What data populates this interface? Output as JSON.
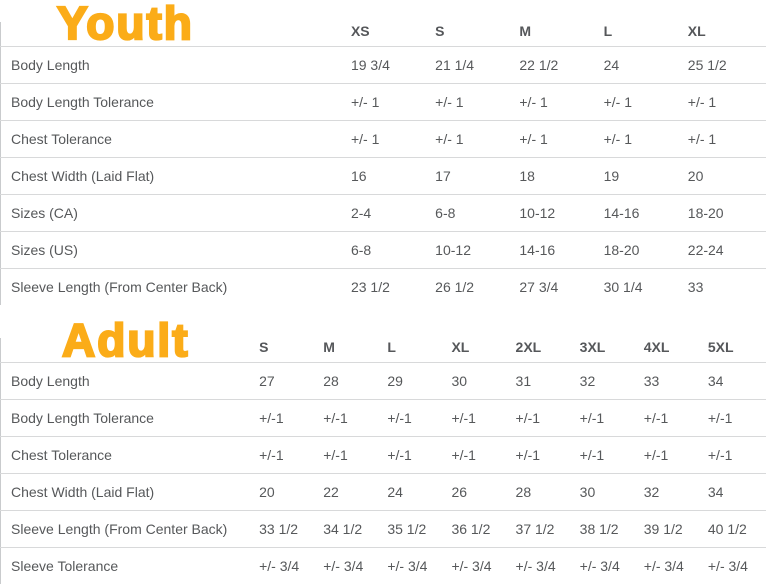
{
  "accent_color": "#fbac18",
  "text_color": "#56585a",
  "line_color": "#d8d9da",
  "sections": [
    {
      "title": "Youth",
      "columns": [
        "XS",
        "S",
        "M",
        "L",
        "XL"
      ],
      "rows": [
        {
          "label": "Body Length",
          "values": [
            "19 3/4",
            "21 1/4",
            "22 1/2",
            "24",
            "25 1/2"
          ]
        },
        {
          "label": "Body Length Tolerance",
          "values": [
            "+/- 1",
            "+/- 1",
            "+/- 1",
            "+/- 1",
            "+/- 1"
          ]
        },
        {
          "label": "Chest Tolerance",
          "values": [
            "+/- 1",
            "+/- 1",
            "+/- 1",
            "+/- 1",
            "+/- 1"
          ]
        },
        {
          "label": "Chest Width (Laid Flat)",
          "values": [
            "16",
            "17",
            "18",
            "19",
            "20"
          ]
        },
        {
          "label": "Sizes (CA)",
          "values": [
            "2-4",
            "6-8",
            "10-12",
            "14-16",
            "18-20"
          ]
        },
        {
          "label": "Sizes (US)",
          "values": [
            "6-8",
            "10-12",
            "14-16",
            "18-20",
            "22-24"
          ]
        },
        {
          "label": "Sleeve Length (From Center Back)",
          "values": [
            "23 1/2",
            "26 1/2",
            "27 3/4",
            "30 1/4",
            "33"
          ]
        }
      ]
    },
    {
      "title": "Adult",
      "columns": [
        "S",
        "M",
        "L",
        "XL",
        "2XL",
        "3XL",
        "4XL",
        "5XL"
      ],
      "rows": [
        {
          "label": "Body Length",
          "values": [
            "27",
            "28",
            "29",
            "30",
            "31",
            "32",
            "33",
            "34"
          ]
        },
        {
          "label": "Body Length Tolerance",
          "values": [
            "+/-1",
            "+/-1",
            "+/-1",
            "+/-1",
            "+/-1",
            "+/-1",
            "+/-1",
            "+/-1"
          ]
        },
        {
          "label": "Chest Tolerance",
          "values": [
            "+/-1",
            "+/-1",
            "+/-1",
            "+/-1",
            "+/-1",
            "+/-1",
            "+/-1",
            "+/-1"
          ]
        },
        {
          "label": "Chest Width (Laid Flat)",
          "values": [
            "20",
            "22",
            "24",
            "26",
            "28",
            "30",
            "32",
            "34"
          ]
        },
        {
          "label": "Sleeve Length (From Center Back)",
          "values": [
            "33 1/2",
            "34 1/2",
            "35 1/2",
            "36 1/2",
            "37 1/2",
            "38 1/2",
            "39 1/2",
            "40 1/2"
          ]
        },
        {
          "label": "Sleeve Tolerance",
          "values": [
            "+/- 3/4",
            "+/- 3/4",
            "+/- 3/4",
            "+/- 3/4",
            "+/- 3/4",
            "+/- 3/4",
            "+/- 3/4",
            "+/- 3/4"
          ]
        }
      ]
    }
  ],
  "chart_data": [
    {
      "type": "table",
      "title": "Youth",
      "columns": [
        "",
        "XS",
        "S",
        "M",
        "L",
        "XL"
      ],
      "rows": [
        [
          "Body Length",
          "19 3/4",
          "21 1/4",
          "22 1/2",
          "24",
          "25 1/2"
        ],
        [
          "Body Length Tolerance",
          "+/- 1",
          "+/- 1",
          "+/- 1",
          "+/- 1",
          "+/- 1"
        ],
        [
          "Chest Tolerance",
          "+/- 1",
          "+/- 1",
          "+/- 1",
          "+/- 1",
          "+/- 1"
        ],
        [
          "Chest Width (Laid Flat)",
          "16",
          "17",
          "18",
          "19",
          "20"
        ],
        [
          "Sizes (CA)",
          "2-4",
          "6-8",
          "10-12",
          "14-16",
          "18-20"
        ],
        [
          "Sizes (US)",
          "6-8",
          "10-12",
          "14-16",
          "18-20",
          "22-24"
        ],
        [
          "Sleeve Length (From Center Back)",
          "23 1/2",
          "26 1/2",
          "27 3/4",
          "30 1/4",
          "33"
        ]
      ]
    },
    {
      "type": "table",
      "title": "Adult",
      "columns": [
        "",
        "S",
        "M",
        "L",
        "XL",
        "2XL",
        "3XL",
        "4XL",
        "5XL"
      ],
      "rows": [
        [
          "Body Length",
          "27",
          "28",
          "29",
          "30",
          "31",
          "32",
          "33",
          "34"
        ],
        [
          "Body Length Tolerance",
          "+/-1",
          "+/-1",
          "+/-1",
          "+/-1",
          "+/-1",
          "+/-1",
          "+/-1",
          "+/-1"
        ],
        [
          "Chest Tolerance",
          "+/-1",
          "+/-1",
          "+/-1",
          "+/-1",
          "+/-1",
          "+/-1",
          "+/-1",
          "+/-1"
        ],
        [
          "Chest Width (Laid Flat)",
          "20",
          "22",
          "24",
          "26",
          "28",
          "30",
          "32",
          "34"
        ],
        [
          "Sleeve Length (From Center Back)",
          "33 1/2",
          "34 1/2",
          "35 1/2",
          "36 1/2",
          "37 1/2",
          "38 1/2",
          "39 1/2",
          "40 1/2"
        ],
        [
          "Sleeve Tolerance",
          "+/- 3/4",
          "+/- 3/4",
          "+/- 3/4",
          "+/- 3/4",
          "+/- 3/4",
          "+/- 3/4",
          "+/- 3/4",
          "+/- 3/4"
        ]
      ]
    }
  ]
}
